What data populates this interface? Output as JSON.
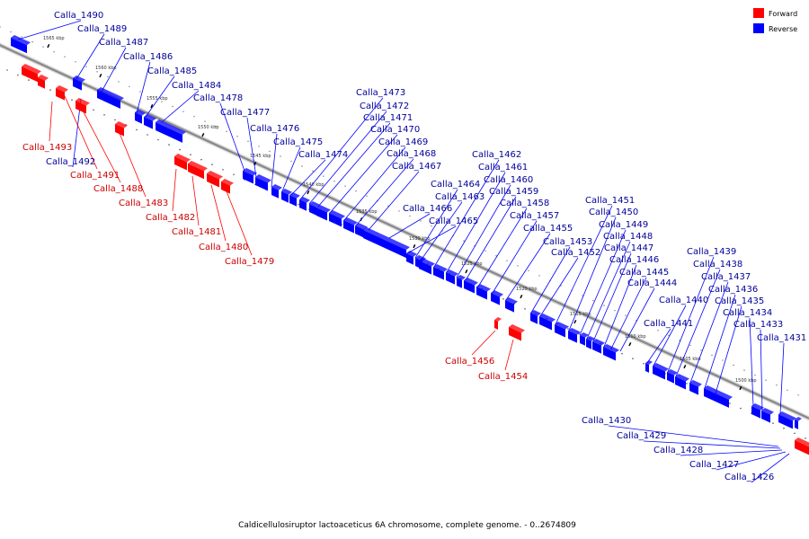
{
  "caption": "Caldicellulosiruptor lactoaceticus 6A chromosome, complete genome. - 0..2674809",
  "legend": [
    {
      "label": "Forward",
      "color": "#ff0000"
    },
    {
      "label": "Reverse",
      "color": "#0000ff"
    }
  ],
  "colors": {
    "forward": "#ff0000",
    "reverse": "#0000ff",
    "forward_label": "#cc0000",
    "reverse_label": "#000099",
    "backbone": "#888888"
  },
  "ticks": [
    "1565 kbp",
    "1560 kbp",
    "1555 kbp",
    "1550 kbp",
    "1545 kbp",
    "1540 kbp",
    "1535 kbp",
    "1530 kbp",
    "1525 kbp",
    "1520 kbp",
    "1515 kbp",
    "1510 kbp",
    "1505 kbp",
    "1500 kbp"
  ],
  "genes": [
    {
      "name": "Calla_1490",
      "strand": "reverse"
    },
    {
      "name": "Calla_1489",
      "strand": "reverse"
    },
    {
      "name": "Calla_1487",
      "strand": "reverse"
    },
    {
      "name": "Calla_1486",
      "strand": "reverse"
    },
    {
      "name": "Calla_1485",
      "strand": "reverse"
    },
    {
      "name": "Calla_1484",
      "strand": "reverse"
    },
    {
      "name": "Calla_1478",
      "strand": "reverse"
    },
    {
      "name": "Calla_1477",
      "strand": "reverse"
    },
    {
      "name": "Calla_1476",
      "strand": "reverse"
    },
    {
      "name": "Calla_1475",
      "strand": "reverse"
    },
    {
      "name": "Calla_1474",
      "strand": "reverse"
    },
    {
      "name": "Calla_1473",
      "strand": "reverse"
    },
    {
      "name": "Calla_1472",
      "strand": "reverse"
    },
    {
      "name": "Calla_1471",
      "strand": "reverse"
    },
    {
      "name": "Calla_1470",
      "strand": "reverse"
    },
    {
      "name": "Calla_1469",
      "strand": "reverse"
    },
    {
      "name": "Calla_1468",
      "strand": "reverse"
    },
    {
      "name": "Calla_1467",
      "strand": "reverse"
    },
    {
      "name": "Calla_1466",
      "strand": "reverse"
    },
    {
      "name": "Calla_1465",
      "strand": "reverse"
    },
    {
      "name": "Calla_1464",
      "strand": "reverse"
    },
    {
      "name": "Calla_1463",
      "strand": "reverse"
    },
    {
      "name": "Calla_1462",
      "strand": "reverse"
    },
    {
      "name": "Calla_1461",
      "strand": "reverse"
    },
    {
      "name": "Calla_1460",
      "strand": "reverse"
    },
    {
      "name": "Calla_1459",
      "strand": "reverse"
    },
    {
      "name": "Calla_1458",
      "strand": "reverse"
    },
    {
      "name": "Calla_1457",
      "strand": "reverse"
    },
    {
      "name": "Calla_1455",
      "strand": "reverse"
    },
    {
      "name": "Calla_1453",
      "strand": "reverse"
    },
    {
      "name": "Calla_1452",
      "strand": "reverse"
    },
    {
      "name": "Calla_1451",
      "strand": "reverse"
    },
    {
      "name": "Calla_1450",
      "strand": "reverse"
    },
    {
      "name": "Calla_1449",
      "strand": "reverse"
    },
    {
      "name": "Calla_1448",
      "strand": "reverse"
    },
    {
      "name": "Calla_1447",
      "strand": "reverse"
    },
    {
      "name": "Calla_1446",
      "strand": "reverse"
    },
    {
      "name": "Calla_1445",
      "strand": "reverse"
    },
    {
      "name": "Calla_1444",
      "strand": "reverse"
    },
    {
      "name": "Calla_1441",
      "strand": "reverse"
    },
    {
      "name": "Calla_1440",
      "strand": "reverse"
    },
    {
      "name": "Calla_1439",
      "strand": "reverse"
    },
    {
      "name": "Calla_1438",
      "strand": "reverse"
    },
    {
      "name": "Calla_1437",
      "strand": "reverse"
    },
    {
      "name": "Calla_1436",
      "strand": "reverse"
    },
    {
      "name": "Calla_1435",
      "strand": "reverse"
    },
    {
      "name": "Calla_1434",
      "strand": "reverse"
    },
    {
      "name": "Calla_1433",
      "strand": "reverse"
    },
    {
      "name": "Calla_1431",
      "strand": "reverse"
    },
    {
      "name": "Calla_1430",
      "strand": "reverse"
    },
    {
      "name": "Calla_1429",
      "strand": "reverse"
    },
    {
      "name": "Calla_1428",
      "strand": "reverse"
    },
    {
      "name": "Calla_1427",
      "strand": "reverse"
    },
    {
      "name": "Calla_1426",
      "strand": "reverse"
    },
    {
      "name": "Calla_1493",
      "strand": "forward"
    },
    {
      "name": "Calla_1492",
      "strand": "reverse"
    },
    {
      "name": "Calla_1491",
      "strand": "forward"
    },
    {
      "name": "Calla_1488",
      "strand": "forward"
    },
    {
      "name": "Calla_1483",
      "strand": "forward"
    },
    {
      "name": "Calla_1482",
      "strand": "forward"
    },
    {
      "name": "Calla_1481",
      "strand": "forward"
    },
    {
      "name": "Calla_1480",
      "strand": "forward"
    },
    {
      "name": "Calla_1479",
      "strand": "forward"
    },
    {
      "name": "Calla_1456",
      "strand": "forward"
    },
    {
      "name": "Calla_1454",
      "strand": "forward"
    }
  ]
}
